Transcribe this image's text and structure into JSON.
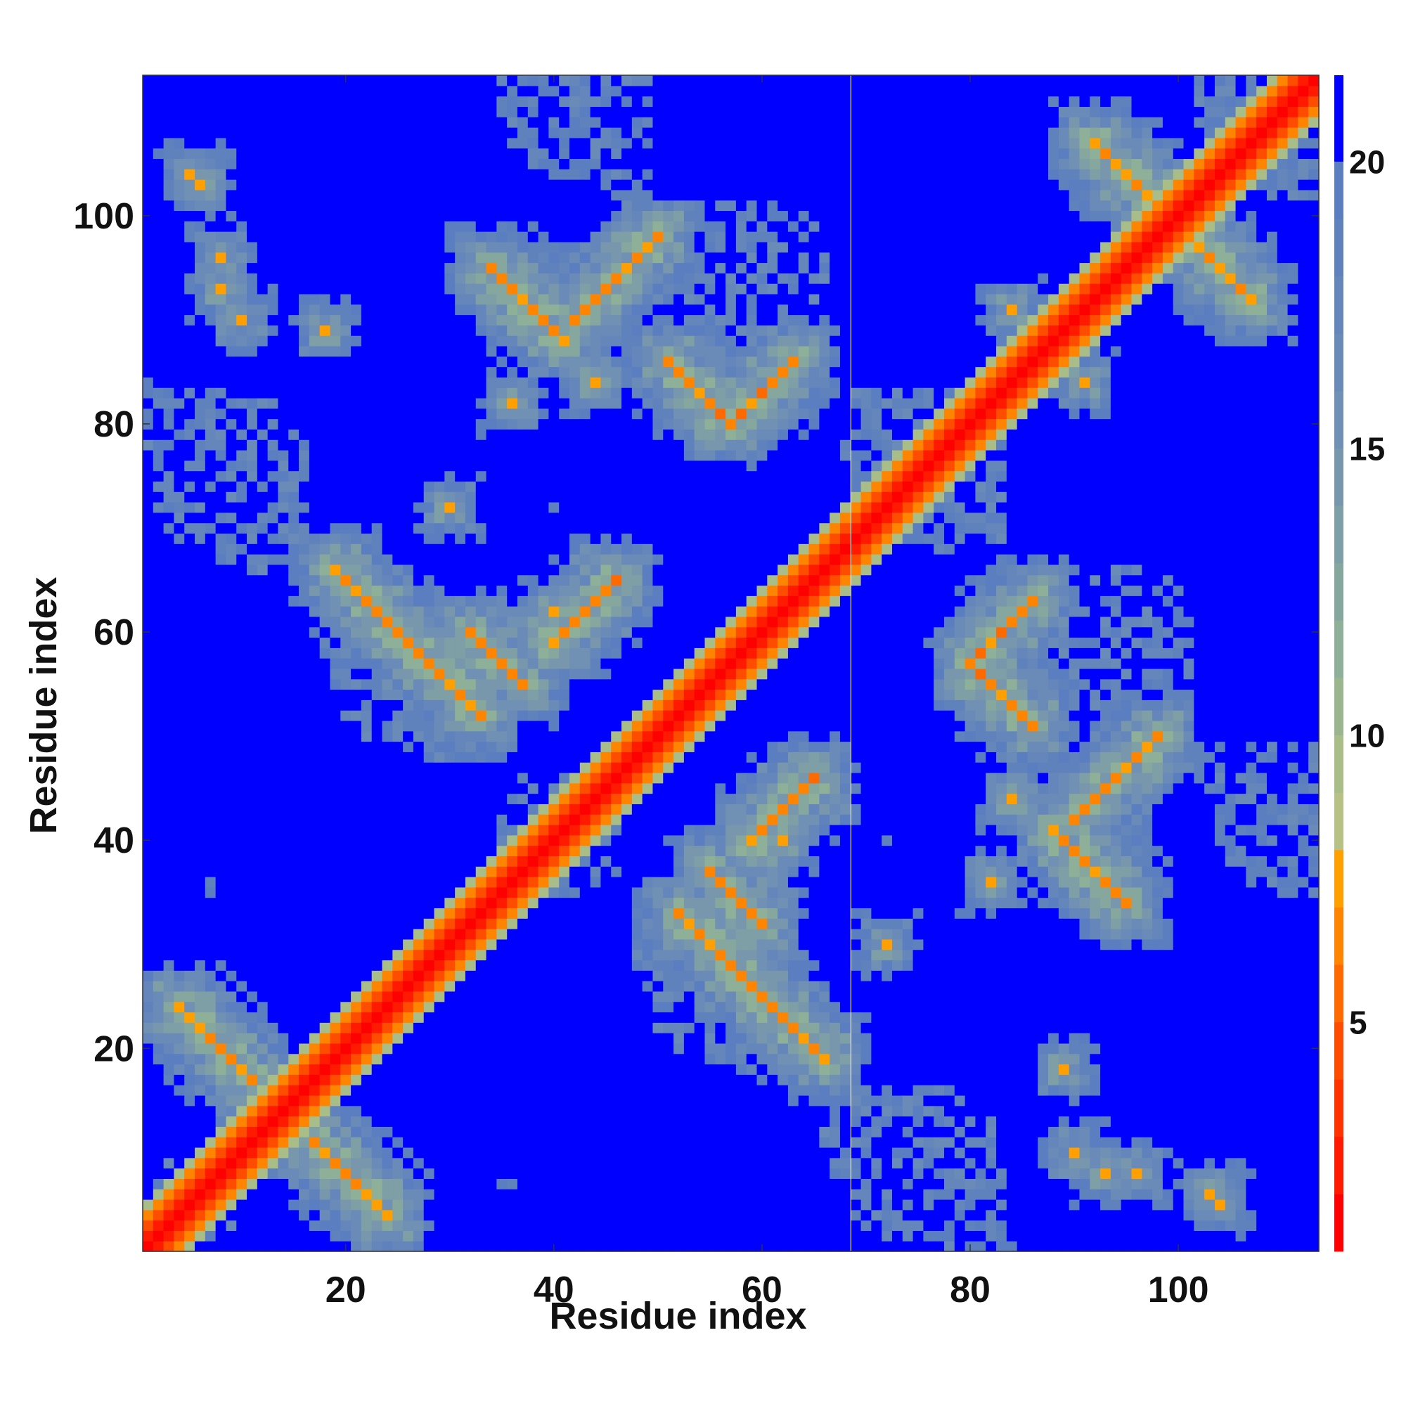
{
  "chart_data": {
    "type": "heatmap",
    "title": "",
    "xlabel": "Residue index",
    "ylabel": "Residue index",
    "x_range": [
      1,
      113
    ],
    "y_range": [
      1,
      113
    ],
    "x_ticks": [
      20,
      40,
      60,
      80,
      100
    ],
    "y_ticks": [
      20,
      40,
      60,
      80,
      100
    ],
    "x_tick_labels": [
      "20",
      "40",
      "60",
      "80",
      "100"
    ],
    "y_tick_labels": [
      "20",
      "40",
      "60",
      "80",
      "100"
    ],
    "n_residues": 113,
    "value_range": [
      1,
      21.5
    ],
    "background_value": 21.5,
    "colorbar": {
      "ticks": [
        5,
        10,
        15,
        20
      ],
      "tick_labels": [
        "5",
        "10",
        "15",
        "20"
      ],
      "range": [
        1,
        21.5
      ],
      "colors": [
        {
          "max": 2,
          "color": "#ff0000"
        },
        {
          "max": 3,
          "color": "#ff1a00"
        },
        {
          "max": 4,
          "color": "#ff3300"
        },
        {
          "max": 5,
          "color": "#ff4d00"
        },
        {
          "max": 6,
          "color": "#ff6a00"
        },
        {
          "max": 7,
          "color": "#ff8400"
        },
        {
          "max": 8,
          "color": "#ffa000"
        },
        {
          "max": 9,
          "color": "#b7c186"
        },
        {
          "max": 10,
          "color": "#a8bd88"
        },
        {
          "max": 11,
          "color": "#9ab68e"
        },
        {
          "max": 12,
          "color": "#8fb098"
        },
        {
          "max": 13,
          "color": "#86a79e"
        },
        {
          "max": 14,
          "color": "#7f9fa6"
        },
        {
          "max": 15,
          "color": "#7897ad"
        },
        {
          "max": 16,
          "color": "#7090b4"
        },
        {
          "max": 17,
          "color": "#6a8bb8"
        },
        {
          "max": 18,
          "color": "#6486bb"
        },
        {
          "max": 19,
          "color": "#5f82bd"
        },
        {
          "max": 20,
          "color": "#5a7ec0"
        },
        {
          "max": 21.5,
          "color": "#0000ff"
        }
      ]
    },
    "contact_segments": [
      {
        "kind": "antiparallel",
        "i0": 4,
        "j0": 24,
        "length": 8,
        "distance": 6.2
      },
      {
        "kind": "antiparallel",
        "i0": 19,
        "j0": 66,
        "length": 15,
        "distance": 6.0
      },
      {
        "kind": "antiparallel",
        "i0": 32,
        "j0": 60,
        "length": 6,
        "distance": 5.8
      },
      {
        "kind": "antiparallel",
        "i0": 34,
        "j0": 95,
        "length": 8,
        "distance": 6.0
      },
      {
        "kind": "antiparallel",
        "i0": 51,
        "j0": 86,
        "length": 6,
        "distance": 5.8
      },
      {
        "kind": "antiparallel",
        "i0": 92,
        "j0": 107,
        "length": 8,
        "distance": 6.2
      },
      {
        "kind": "parallel",
        "i0": 59,
        "j0": 40,
        "length": 7,
        "distance": 5.9
      },
      {
        "kind": "parallel",
        "i0": 80,
        "j0": 57,
        "length": 7,
        "distance": 5.9
      },
      {
        "kind": "parallel",
        "i0": 90,
        "j0": 42,
        "length": 9,
        "distance": 6.1
      }
    ],
    "isolated_contacts": [
      {
        "i": 5,
        "j": 104,
        "distance": 7.5
      },
      {
        "i": 8,
        "j": 96,
        "distance": 7.5
      },
      {
        "i": 10,
        "j": 90,
        "distance": 7.5
      },
      {
        "i": 18,
        "j": 89,
        "distance": 7.5
      },
      {
        "i": 36,
        "j": 82,
        "distance": 7.5
      },
      {
        "i": 44,
        "j": 84,
        "distance": 7.5
      },
      {
        "i": 62,
        "j": 40,
        "distance": 7.5
      },
      {
        "i": 72,
        "j": 30,
        "distance": 7.5
      },
      {
        "i": 84,
        "j": 44,
        "distance": 7.5
      },
      {
        "i": 93,
        "j": 8,
        "distance": 7.5
      },
      {
        "i": 103,
        "j": 6,
        "distance": 7.5
      },
      {
        "i": 84,
        "j": 91,
        "distance": 7.5
      }
    ],
    "gap_column": 68,
    "grid": false,
    "legend": "none"
  }
}
